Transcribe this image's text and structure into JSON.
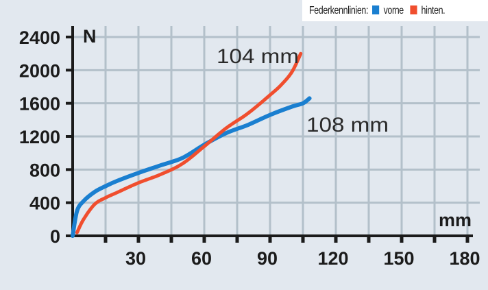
{
  "legend": {
    "title": "Federkennlinien:",
    "items": [
      {
        "label": "vorne",
        "color": "#1a7fd0"
      },
      {
        "label": "hinten.",
        "color": "#f04e2e"
      }
    ]
  },
  "axes": {
    "y_unit": "N",
    "x_unit": "mm",
    "y_ticks": [
      "2400",
      "2000",
      "1600",
      "1200",
      "800",
      "400",
      "0"
    ],
    "x_ticks": [
      "30",
      "60",
      "90",
      "120",
      "150",
      "180"
    ]
  },
  "annotations": {
    "rear_travel": "104 mm",
    "front_travel": "108 mm"
  },
  "chart_data": {
    "type": "line",
    "title": "Federkennlinien",
    "xlabel": "mm",
    "ylabel": "N",
    "xlim": [
      0,
      180
    ],
    "ylim": [
      0,
      2400
    ],
    "x_ticks": [
      30,
      60,
      90,
      120,
      150,
      180
    ],
    "y_ticks": [
      0,
      400,
      800,
      1200,
      1600,
      2000,
      2400
    ],
    "grid": true,
    "legend_position": "top-right",
    "series": [
      {
        "name": "vorne",
        "color": "#1a7fd0",
        "annotation": "108 mm",
        "x": [
          0,
          2,
          5,
          10,
          15,
          20,
          30,
          40,
          50,
          60,
          70,
          80,
          90,
          100,
          105,
          108
        ],
        "y": [
          0,
          300,
          420,
          530,
          600,
          660,
          760,
          850,
          940,
          1100,
          1240,
          1340,
          1460,
          1560,
          1600,
          1660
        ]
      },
      {
        "name": "hinten",
        "color": "#f04e2e",
        "annotation": "104 mm",
        "x": [
          2,
          5,
          10,
          15,
          20,
          30,
          40,
          50,
          60,
          70,
          80,
          90,
          95,
          100,
          104
        ],
        "y": [
          40,
          200,
          380,
          460,
          520,
          640,
          740,
          870,
          1080,
          1300,
          1480,
          1700,
          1820,
          1980,
          2200
        ]
      }
    ]
  }
}
